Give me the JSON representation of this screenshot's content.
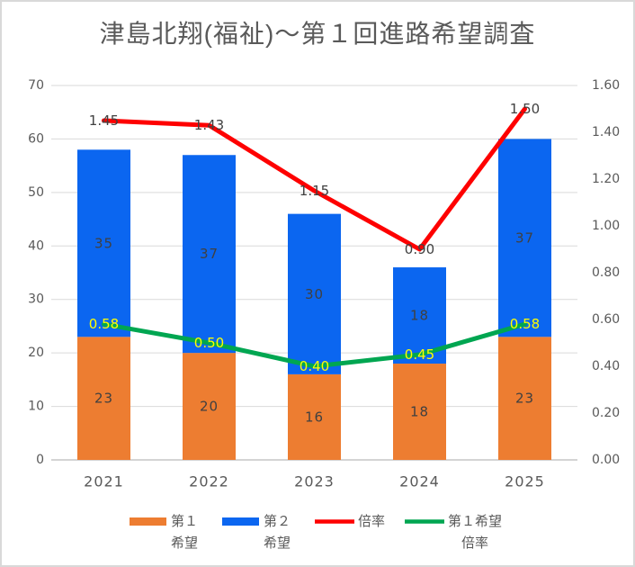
{
  "chart_data": {
    "type": "combo",
    "bar_type": "stacked",
    "title": "津島北翔(福祉)～第１回進路希望調査",
    "categories": [
      "2021",
      "2022",
      "2023",
      "2024",
      "2025"
    ],
    "bar_series": [
      {
        "name": "第１希望",
        "legend_lines": [
          "第１",
          "希望"
        ],
        "color": "#ED7D31",
        "label_color": "#404040",
        "values": [
          23,
          20,
          16,
          18,
          23
        ]
      },
      {
        "name": "第２希望",
        "legend_lines": [
          "第２",
          "希望"
        ],
        "color": "#0B66F0",
        "label_color": "#404040",
        "values": [
          35,
          37,
          30,
          18,
          37
        ]
      }
    ],
    "line_series": [
      {
        "name": "倍率",
        "legend_lines": [
          "倍率"
        ],
        "color": "#FE0000",
        "label_color": "#404040",
        "values": [
          1.45,
          1.43,
          1.15,
          0.9,
          1.5
        ]
      },
      {
        "name": "第１希望倍率",
        "legend_lines": [
          "第１希望",
          "倍率"
        ],
        "color": "#00A651",
        "label_color": "#FFFF00",
        "values": [
          0.58,
          0.5,
          0.4,
          0.45,
          0.58
        ]
      }
    ],
    "left_axis": {
      "min": 0,
      "max": 70,
      "step": 10,
      "ticks": [
        "0",
        "10",
        "20",
        "30",
        "40",
        "50",
        "60",
        "70"
      ]
    },
    "right_axis": {
      "min": 0,
      "max": 1.6,
      "step": 0.2,
      "ticks": [
        "0.00",
        "0.20",
        "0.40",
        "0.60",
        "0.80",
        "1.00",
        "1.20",
        "1.40",
        "1.60"
      ]
    },
    "grid": true,
    "legend_position": "bottom",
    "colors": {
      "grid": "#D9D9D9",
      "axis_line": "#C6C6C6",
      "axis_text": "#595959",
      "title_text": "#595959"
    }
  }
}
